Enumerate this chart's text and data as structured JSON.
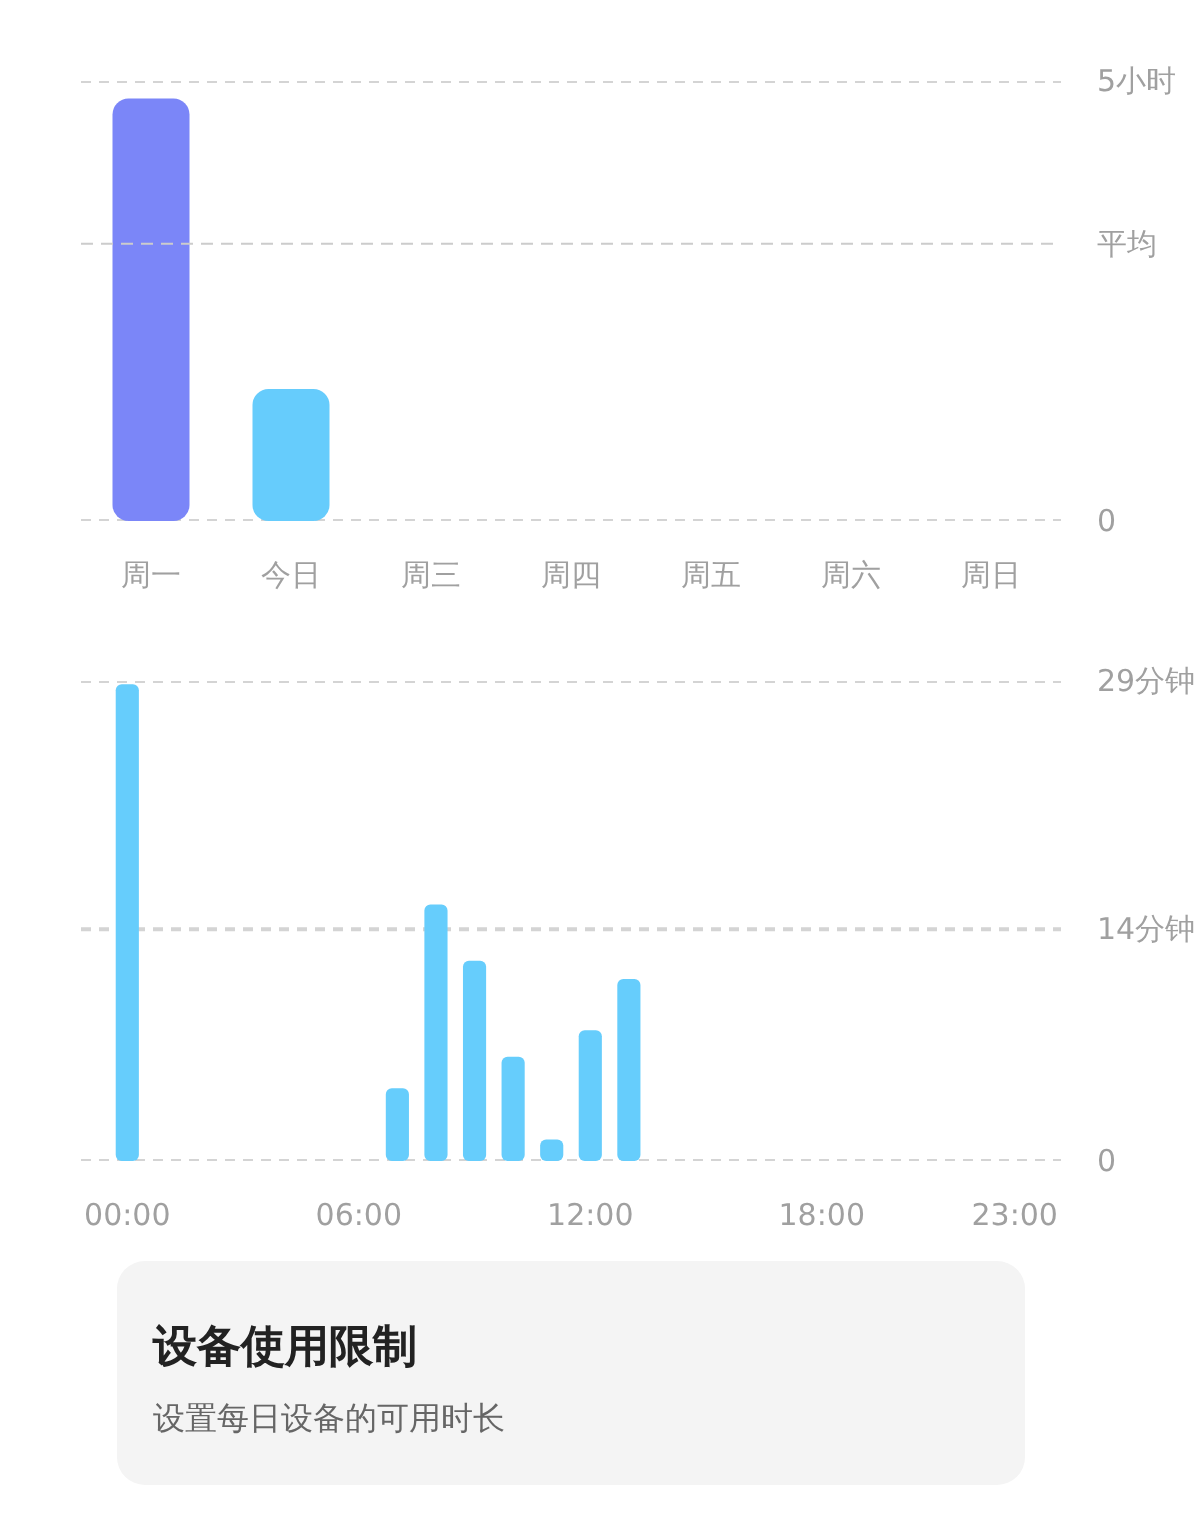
{
  "chart_data": [
    {
      "type": "bar",
      "categories": [
        "周一",
        "今日",
        "周三",
        "周四",
        "周五",
        "周六",
        "周日"
      ],
      "series": [
        {
          "colors": [
            "#7b86f8",
            "#66ccfc",
            null,
            null,
            null,
            null,
            null
          ],
          "values": [
            4.8,
            1.5,
            null,
            null,
            null,
            null,
            null
          ]
        }
      ],
      "ylim": [
        0,
        5
      ],
      "yticks": [
        0,
        {
          "value": 5,
          "label": "5小时"
        }
      ],
      "grid": "y",
      "ref_lines": [
        {
          "axis": "y",
          "value": 3.15,
          "label": "平均",
          "line_style": "dashed"
        }
      ]
    },
    {
      "type": "bar",
      "x": [
        0,
        7,
        8,
        9,
        10,
        11,
        12,
        13
      ],
      "series": [
        {
          "color": "#66cdfc",
          "values": [
            28.8,
            4.4,
            15.5,
            12.1,
            6.3,
            1.3,
            7.9,
            11.0
          ]
        }
      ],
      "xlim": [
        -1.2,
        24.2
      ],
      "xticks": [
        {
          "value": 0,
          "label": "00:00"
        },
        {
          "value": 6,
          "label": "06:00"
        },
        {
          "value": 12,
          "label": "12:00"
        },
        {
          "value": 18,
          "label": "18:00"
        },
        {
          "value": 23,
          "label": "23:00"
        }
      ],
      "ylim": [
        0,
        29
      ],
      "yticks": [
        0,
        {
          "value": 14,
          "label": "14分钟"
        },
        {
          "value": 29,
          "label": "29分钟"
        }
      ],
      "grid": "y"
    },
    {
      "type": "other",
      "title": "设备使用限制",
      "subtitle": "设置每日设备的可用时长"
    }
  ]
}
